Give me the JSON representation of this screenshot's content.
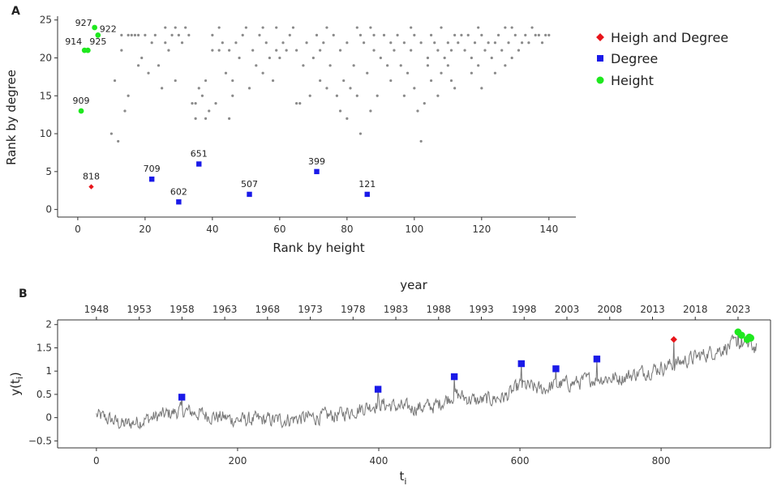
{
  "colors": {
    "both": "#e8141a",
    "degree": "#1a1ae8",
    "height": "#1ee81e",
    "background": "#8a8a8a",
    "series": "#777777"
  },
  "legend": [
    {
      "key": "both",
      "label": "Heigh and Degree",
      "shape": "diamond"
    },
    {
      "key": "degree",
      "label": "Degree",
      "shape": "square"
    },
    {
      "key": "height",
      "label": "Height",
      "shape": "circle"
    }
  ],
  "chart_data": [
    {
      "panel": "A",
      "type": "scatter",
      "xlabel": "Rank by height",
      "ylabel": "Rank by degree",
      "xlim": [
        -6,
        148
      ],
      "ylim": [
        -1,
        25.5
      ],
      "xticks": [
        0,
        20,
        40,
        60,
        80,
        100,
        120,
        140
      ],
      "yticks": [
        0,
        5,
        10,
        15,
        20,
        25
      ],
      "highlighted": [
        {
          "label": "818",
          "x": 4,
          "y": 3,
          "group": "both"
        },
        {
          "label": "709",
          "x": 22,
          "y": 4,
          "group": "degree"
        },
        {
          "label": "602",
          "x": 30,
          "y": 1,
          "group": "degree"
        },
        {
          "label": "651",
          "x": 36,
          "y": 6,
          "group": "degree"
        },
        {
          "label": "507",
          "x": 51,
          "y": 2,
          "group": "degree"
        },
        {
          "label": "399",
          "x": 71,
          "y": 5,
          "group": "degree"
        },
        {
          "label": "121",
          "x": 86,
          "y": 2,
          "group": "degree"
        },
        {
          "label": "909",
          "x": 1,
          "y": 13,
          "group": "height"
        },
        {
          "label": "914",
          "x": 2,
          "y": 21,
          "group": "height"
        },
        {
          "label": "925",
          "x": 3,
          "y": 21,
          "group": "height"
        },
        {
          "label": "927",
          "x": 5,
          "y": 24,
          "group": "height"
        },
        {
          "label": "922",
          "x": 6,
          "y": 23,
          "group": "height"
        }
      ],
      "background_points": [
        [
          10,
          10
        ],
        [
          11,
          17
        ],
        [
          12,
          9
        ],
        [
          13,
          23
        ],
        [
          13,
          21
        ],
        [
          14,
          13
        ],
        [
          15,
          15
        ],
        [
          15,
          23
        ],
        [
          16,
          23
        ],
        [
          17,
          23
        ],
        [
          18,
          23
        ],
        [
          18,
          19
        ],
        [
          19,
          20
        ],
        [
          20,
          23
        ],
        [
          21,
          18
        ],
        [
          22,
          22
        ],
        [
          23,
          23
        ],
        [
          24,
          19
        ],
        [
          25,
          16
        ],
        [
          26,
          22
        ],
        [
          26,
          24
        ],
        [
          27,
          21
        ],
        [
          28,
          23
        ],
        [
          29,
          24
        ],
        [
          29,
          17
        ],
        [
          30,
          23
        ],
        [
          31,
          22
        ],
        [
          32,
          24
        ],
        [
          33,
          23
        ],
        [
          34,
          14
        ],
        [
          35,
          12
        ],
        [
          35,
          14
        ],
        [
          36,
          16
        ],
        [
          37,
          15
        ],
        [
          38,
          17
        ],
        [
          38,
          12
        ],
        [
          39,
          13
        ],
        [
          40,
          23
        ],
        [
          40,
          21
        ],
        [
          41,
          14
        ],
        [
          42,
          21
        ],
        [
          42,
          24
        ],
        [
          43,
          22
        ],
        [
          44,
          18
        ],
        [
          45,
          12
        ],
        [
          45,
          21
        ],
        [
          46,
          15
        ],
        [
          46,
          17
        ],
        [
          47,
          22
        ],
        [
          48,
          20
        ],
        [
          49,
          23
        ],
        [
          50,
          24
        ],
        [
          51,
          16
        ],
        [
          52,
          21
        ],
        [
          53,
          19
        ],
        [
          54,
          23
        ],
        [
          55,
          24
        ],
        [
          55,
          18
        ],
        [
          56,
          22
        ],
        [
          57,
          20
        ],
        [
          58,
          17
        ],
        [
          59,
          24
        ],
        [
          59,
          21
        ],
        [
          60,
          20
        ],
        [
          61,
          22
        ],
        [
          62,
          21
        ],
        [
          63,
          23
        ],
        [
          64,
          24
        ],
        [
          65,
          14
        ],
        [
          65,
          21
        ],
        [
          66,
          14
        ],
        [
          67,
          19
        ],
        [
          68,
          22
        ],
        [
          69,
          15
        ],
        [
          70,
          20
        ],
        [
          71,
          23
        ],
        [
          72,
          17
        ],
        [
          72,
          21
        ],
        [
          73,
          22
        ],
        [
          74,
          24
        ],
        [
          74,
          16
        ],
        [
          75,
          19
        ],
        [
          76,
          23
        ],
        [
          77,
          15
        ],
        [
          78,
          21
        ],
        [
          78,
          13
        ],
        [
          79,
          17
        ],
        [
          80,
          22
        ],
        [
          80,
          12
        ],
        [
          81,
          16
        ],
        [
          82,
          19
        ],
        [
          83,
          24
        ],
        [
          83,
          15
        ],
        [
          84,
          23
        ],
        [
          84,
          10
        ],
        [
          85,
          22
        ],
        [
          86,
          18
        ],
        [
          87,
          24
        ],
        [
          87,
          13
        ],
        [
          88,
          23
        ],
        [
          88,
          21
        ],
        [
          89,
          15
        ],
        [
          90,
          20
        ],
        [
          91,
          23
        ],
        [
          92,
          19
        ],
        [
          93,
          22
        ],
        [
          93,
          17
        ],
        [
          94,
          21
        ],
        [
          95,
          23
        ],
        [
          96,
          19
        ],
        [
          97,
          22
        ],
        [
          97,
          15
        ],
        [
          98,
          18
        ],
        [
          99,
          24
        ],
        [
          99,
          21
        ],
        [
          100,
          23
        ],
        [
          100,
          16
        ],
        [
          101,
          13
        ],
        [
          102,
          22
        ],
        [
          102,
          9
        ],
        [
          103,
          14
        ],
        [
          104,
          20
        ],
        [
          104,
          19
        ],
        [
          105,
          23
        ],
        [
          105,
          17
        ],
        [
          106,
          22
        ],
        [
          107,
          21
        ],
        [
          107,
          15
        ],
        [
          108,
          24
        ],
        [
          108,
          18
        ],
        [
          109,
          20
        ],
        [
          110,
          22
        ],
        [
          110,
          19
        ],
        [
          111,
          17
        ],
        [
          111,
          21
        ],
        [
          112,
          23
        ],
        [
          112,
          16
        ],
        [
          113,
          22
        ],
        [
          114,
          23
        ],
        [
          115,
          21
        ],
        [
          116,
          23
        ],
        [
          117,
          20
        ],
        [
          117,
          18
        ],
        [
          118,
          22
        ],
        [
          119,
          24
        ],
        [
          119,
          19
        ],
        [
          120,
          23
        ],
        [
          120,
          16
        ],
        [
          121,
          21
        ],
        [
          122,
          22
        ],
        [
          123,
          20
        ],
        [
          124,
          22
        ],
        [
          124,
          18
        ],
        [
          125,
          23
        ],
        [
          126,
          21
        ],
        [
          127,
          19
        ],
        [
          127,
          24
        ],
        [
          128,
          22
        ],
        [
          129,
          24
        ],
        [
          129,
          20
        ],
        [
          130,
          23
        ],
        [
          131,
          21
        ],
        [
          132,
          22
        ],
        [
          133,
          23
        ],
        [
          134,
          22
        ],
        [
          135,
          24
        ],
        [
          136,
          23
        ],
        [
          137,
          23
        ],
        [
          138,
          22
        ],
        [
          139,
          23
        ],
        [
          140,
          23
        ]
      ]
    },
    {
      "panel": "B",
      "type": "line",
      "xlabel": "t",
      "xlabel_sub": "i",
      "ylabel": "y(t",
      "ylabel_sub": "i",
      "ylabel_close": ")",
      "top_axis_label": "year",
      "xlim": [
        -55,
        955
      ],
      "ylim": [
        -0.65,
        2.1
      ],
      "xticks": [
        0,
        200,
        400,
        600,
        800
      ],
      "yticks": [
        -0.5,
        0,
        0.5,
        1,
        1.5,
        2
      ],
      "ytick_labels": [
        "−0.5",
        "0",
        "0.5",
        "1",
        "1.5",
        "2"
      ],
      "top_ticks": [
        1948,
        1953,
        1958,
        1963,
        1968,
        1973,
        1978,
        1983,
        1988,
        1993,
        1998,
        2003,
        2008,
        2013,
        2018,
        2023
      ],
      "year_start": 1948,
      "n_points": 936,
      "series_anchor": [
        [
          0,
          0.05
        ],
        [
          40,
          -0.15
        ],
        [
          80,
          0
        ],
        [
          121,
          0.15
        ],
        [
          160,
          0.05
        ],
        [
          200,
          -0.05
        ],
        [
          260,
          -0.05
        ],
        [
          300,
          0
        ],
        [
          340,
          0.05
        ],
        [
          399,
          0.3
        ],
        [
          440,
          0.2
        ],
        [
          480,
          0.25
        ],
        [
          507,
          0.5
        ],
        [
          540,
          0.35
        ],
        [
          580,
          0.45
        ],
        [
          602,
          0.7
        ],
        [
          630,
          0.6
        ],
        [
          651,
          0.7
        ],
        [
          680,
          0.75
        ],
        [
          709,
          0.85
        ],
        [
          740,
          0.85
        ],
        [
          780,
          1.0
        ],
        [
          818,
          1.15
        ],
        [
          850,
          1.3
        ],
        [
          880,
          1.45
        ],
        [
          909,
          1.6
        ],
        [
          935,
          1.5
        ]
      ],
      "highlighted": [
        {
          "t": 121,
          "y": 0.44,
          "group": "degree"
        },
        {
          "t": 399,
          "y": 0.61,
          "group": "degree"
        },
        {
          "t": 507,
          "y": 0.88,
          "group": "degree"
        },
        {
          "t": 602,
          "y": 1.16,
          "group": "degree"
        },
        {
          "t": 651,
          "y": 1.05,
          "group": "degree"
        },
        {
          "t": 709,
          "y": 1.26,
          "group": "degree"
        },
        {
          "t": 818,
          "y": 1.68,
          "group": "both"
        },
        {
          "t": 909,
          "y": 1.84,
          "group": "height"
        },
        {
          "t": 914,
          "y": 1.77,
          "group": "height"
        },
        {
          "t": 922,
          "y": 1.68,
          "group": "height"
        },
        {
          "t": 925,
          "y": 1.73,
          "group": "height"
        },
        {
          "t": 927,
          "y": 1.71,
          "group": "height"
        }
      ]
    }
  ]
}
